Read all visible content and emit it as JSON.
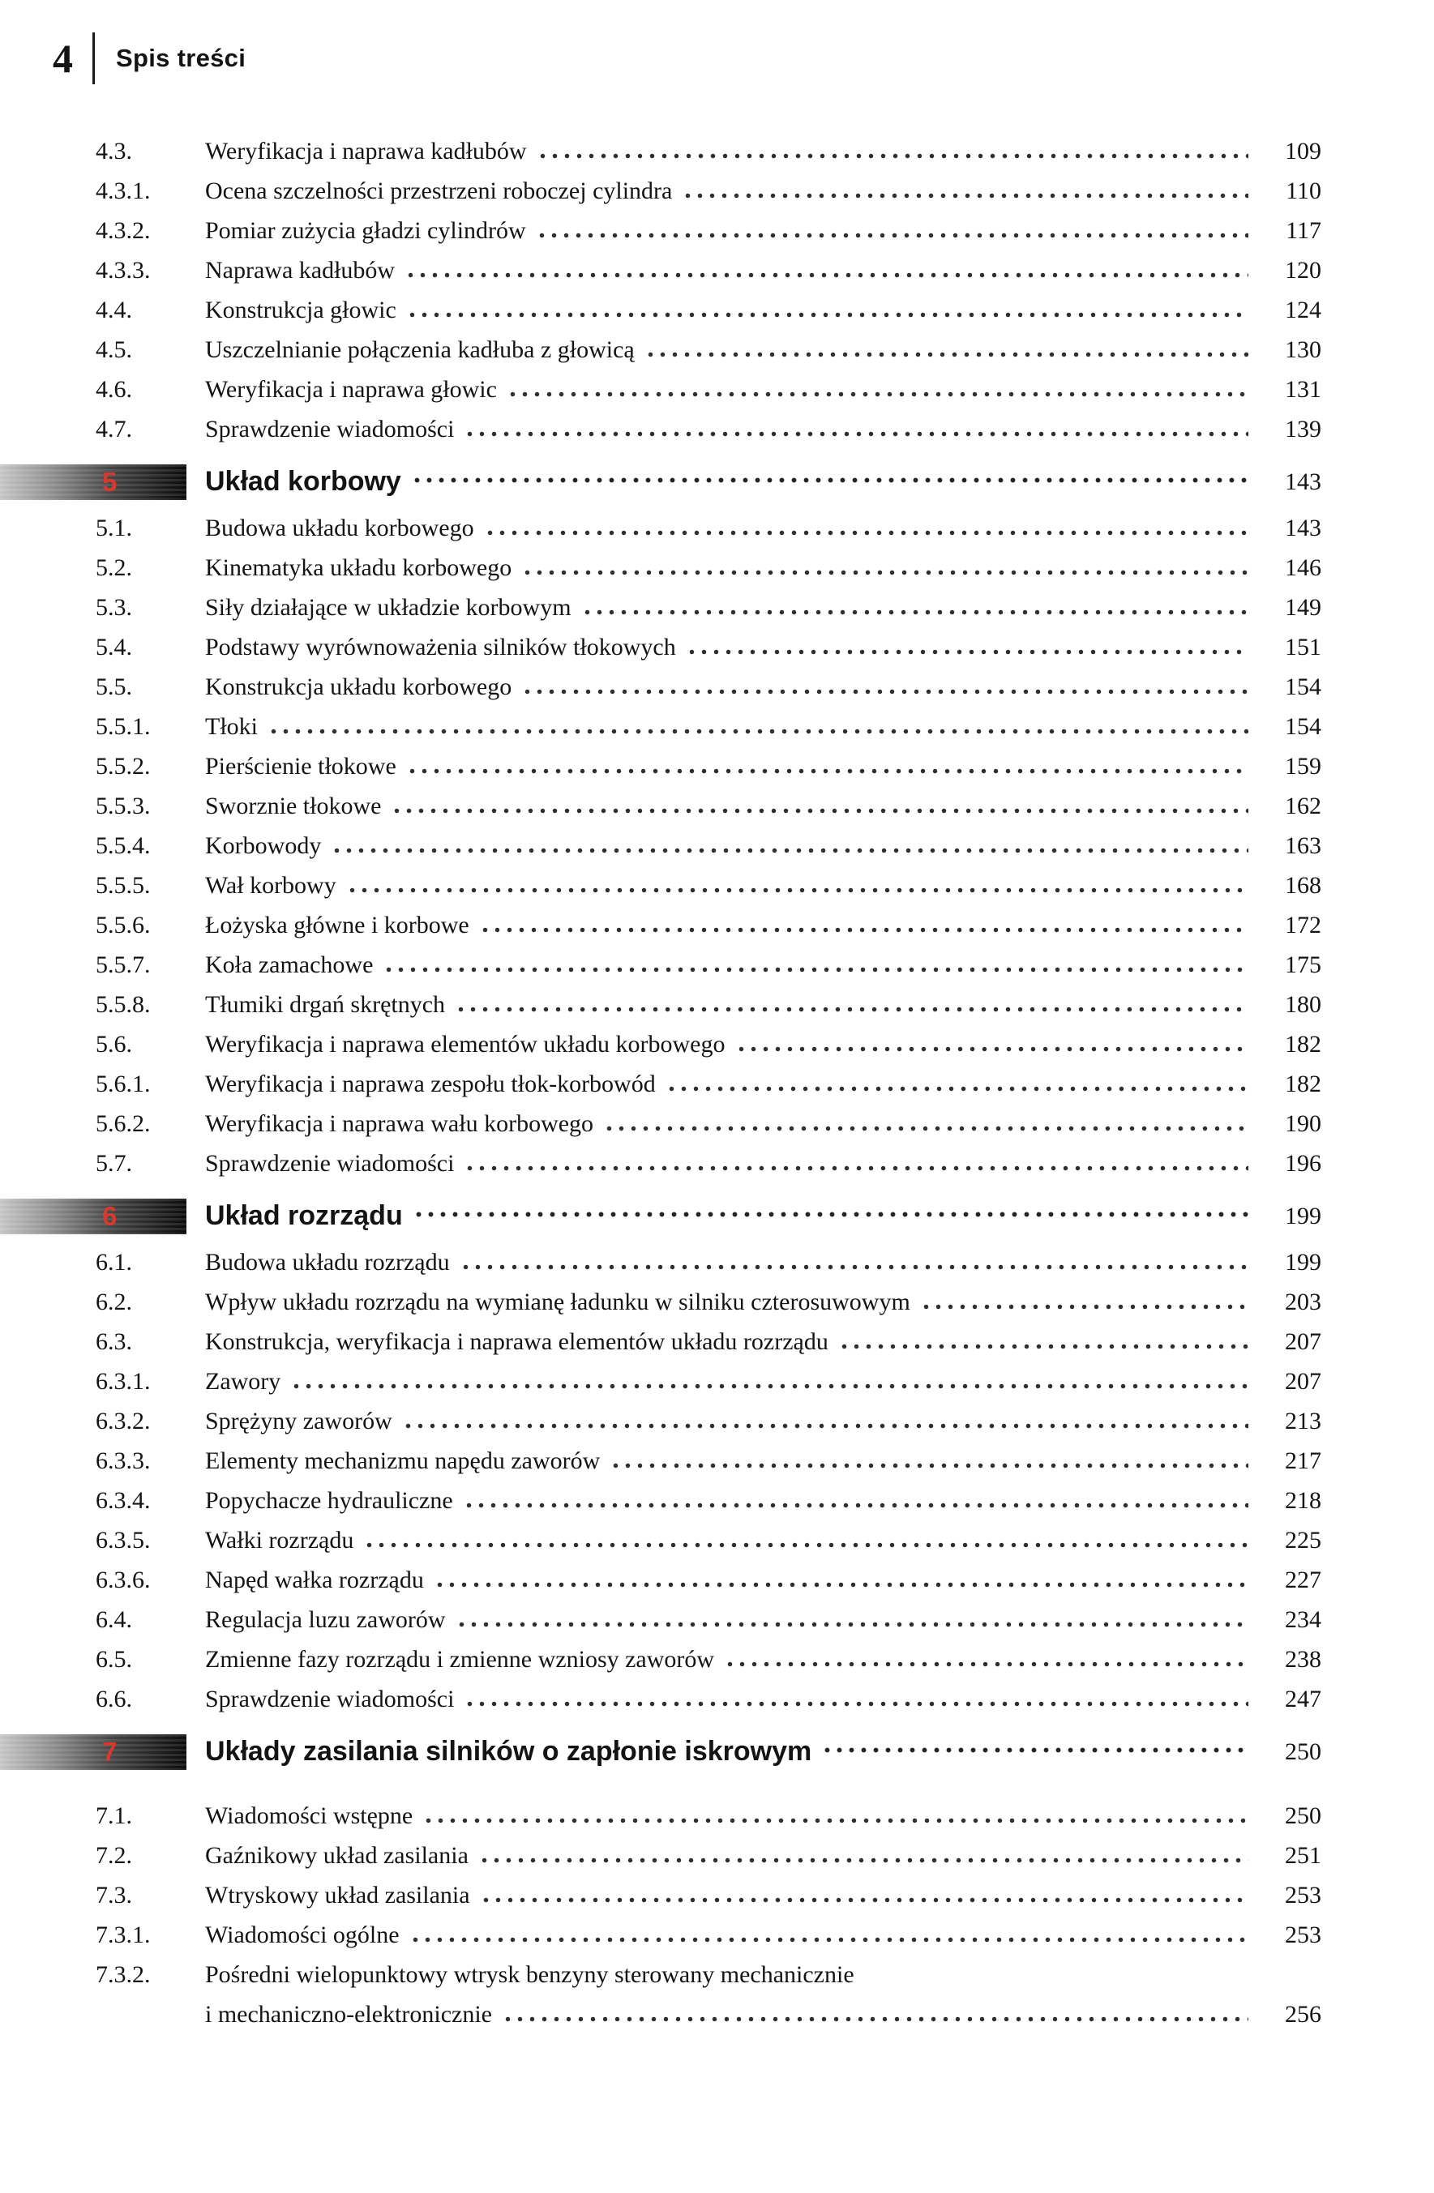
{
  "header": {
    "page_number": "4",
    "title": "Spis treści"
  },
  "colors": {
    "chapter_number_red": "#d63a2f",
    "bar_dark": "#0c0c0c",
    "text": "#141414"
  },
  "entries": [
    {
      "num": "4.3.",
      "title": "Weryfikacja i naprawa kadłubów",
      "page": "109"
    },
    {
      "num": "4.3.1.",
      "title": "Ocena szczelności przestrzeni roboczej cylindra",
      "page": "110"
    },
    {
      "num": "4.3.2.",
      "title": "Pomiar zużycia gładzi cylindrów",
      "page": "117"
    },
    {
      "num": "4.3.3.",
      "title": "Naprawa kadłubów",
      "page": "120"
    },
    {
      "num": "4.4.",
      "title": "Konstrukcja głowic",
      "page": "124"
    },
    {
      "num": "4.5.",
      "title": "Uszczelnianie połączenia kadłuba z głowicą",
      "page": "130"
    },
    {
      "num": "4.6.",
      "title": "Weryfikacja i naprawa głowic",
      "page": "131"
    },
    {
      "num": "4.7.",
      "title": "Sprawdzenie wiadomości",
      "page": "139"
    },
    {
      "num": "5",
      "title": "Układ korbowy",
      "page": "143",
      "type": "chapter"
    },
    {
      "num": "5.1.",
      "title": "Budowa układu korbowego",
      "page": "143"
    },
    {
      "num": "5.2.",
      "title": "Kinematyka układu korbowego",
      "page": "146"
    },
    {
      "num": "5.3.",
      "title": "Siły działające w układzie korbowym",
      "page": "149"
    },
    {
      "num": "5.4.",
      "title": "Podstawy wyrównoważenia silników tłokowych",
      "page": "151"
    },
    {
      "num": "5.5.",
      "title": "Konstrukcja układu korbowego",
      "page": "154"
    },
    {
      "num": "5.5.1.",
      "title": "Tłoki",
      "page": "154"
    },
    {
      "num": "5.5.2.",
      "title": "Pierścienie tłokowe",
      "page": "159"
    },
    {
      "num": "5.5.3.",
      "title": "Sworznie tłokowe",
      "page": "162"
    },
    {
      "num": "5.5.4.",
      "title": "Korbowody",
      "page": "163"
    },
    {
      "num": "5.5.5.",
      "title": "Wał korbowy",
      "page": "168"
    },
    {
      "num": "5.5.6.",
      "title": "Łożyska główne i korbowe",
      "page": "172"
    },
    {
      "num": "5.5.7.",
      "title": "Koła zamachowe",
      "page": "175"
    },
    {
      "num": "5.5.8.",
      "title": "Tłumiki drgań skrętnych",
      "page": "180"
    },
    {
      "num": "5.6.",
      "title": "Weryfikacja i naprawa elementów układu korbowego",
      "page": "182"
    },
    {
      "num": "5.6.1.",
      "title": "Weryfikacja i naprawa zespołu tłok-korbowód",
      "page": "182"
    },
    {
      "num": "5.6.2.",
      "title": "Weryfikacja i naprawa wału korbowego",
      "page": "190"
    },
    {
      "num": "5.7.",
      "title": "Sprawdzenie wiadomości",
      "page": "196"
    },
    {
      "num": "6",
      "title": "Układ rozrządu",
      "page": "199",
      "type": "chapter"
    },
    {
      "num": "6.1.",
      "title": "Budowa układu rozrządu",
      "page": "199"
    },
    {
      "num": "6.2.",
      "title": "Wpływ układu rozrządu na wymianę ładunku w silniku czterosuwowym",
      "page": "203"
    },
    {
      "num": "6.3.",
      "title": "Konstrukcja, weryfikacja i naprawa elementów układu rozrządu",
      "page": "207"
    },
    {
      "num": "6.3.1.",
      "title": "Zawory",
      "page": "207"
    },
    {
      "num": "6.3.2.",
      "title": "Sprężyny zaworów",
      "page": "213"
    },
    {
      "num": "6.3.3.",
      "title": "Elementy mechanizmu napędu zaworów",
      "page": "217"
    },
    {
      "num": "6.3.4.",
      "title": "Popychacze hydrauliczne",
      "page": "218"
    },
    {
      "num": "6.3.5.",
      "title": "Wałki rozrządu",
      "page": "225"
    },
    {
      "num": "6.3.6.",
      "title": "Napęd wałka rozrządu",
      "page": "227"
    },
    {
      "num": "6.4.",
      "title": "Regulacja luzu zaworów",
      "page": "234"
    },
    {
      "num": "6.5.",
      "title": "Zmienne fazy rozrządu i zmienne wzniosy zaworów",
      "page": "238"
    },
    {
      "num": "6.6.",
      "title": "Sprawdzenie wiadomości",
      "page": "247"
    },
    {
      "num": "7",
      "title": "Układy zasilania silników o zapłonie iskrowym",
      "page": "250",
      "type": "chapter",
      "gap_after": true
    },
    {
      "num": "7.1.",
      "title": "Wiadomości wstępne",
      "page": "250"
    },
    {
      "num": "7.2.",
      "title": "Gaźnikowy układ zasilania",
      "page": "251"
    },
    {
      "num": "7.3.",
      "title": "Wtryskowy układ zasilania",
      "page": "253"
    },
    {
      "num": "7.3.1.",
      "title": "Wiadomości ogólne",
      "page": "253"
    },
    {
      "num": "7.3.2.",
      "title": "Pośredni wielopunktowy wtrysk benzyny sterowany mechanicznie",
      "title2": "i mechaniczno-elektronicznie",
      "page": "256"
    }
  ]
}
